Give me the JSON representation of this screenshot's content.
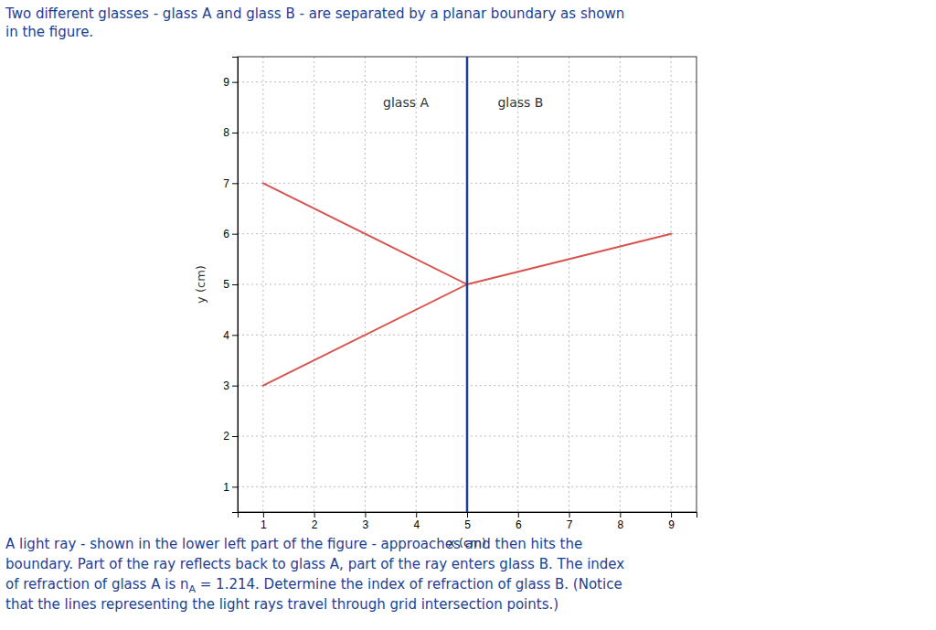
{
  "chart_data": {
    "type": "line",
    "title": [
      "Two different glasses - glass A and glass B - are separated by a planar boundary as shown",
      "in the figure."
    ],
    "caption": [
      [
        "A light ray - shown in the lower left part of the figure - approaches and then hits the"
      ],
      [
        "boundary. Part of the ray reflects back to glass A, part of the ray enters glass B. The index"
      ],
      [
        "of refraction of glass A is n",
        "A",
        " = 1.214. Determine the index of refraction of glass B. (Notice"
      ],
      [
        "that the lines representing the light rays travel through grid intersection points.)"
      ]
    ],
    "text_color": "#1c3f94",
    "x_label": "x (cm)",
    "y_label": "y (cm)",
    "xlim": [
      0.5,
      9.5
    ],
    "ylim": [
      0.5,
      9.5
    ],
    "xticks": [
      1,
      2,
      3,
      4,
      5,
      6,
      7,
      8,
      9
    ],
    "yticks": [
      1,
      2,
      3,
      4,
      5,
      6,
      7,
      8,
      9
    ],
    "grid": true,
    "series": [
      {
        "x": [
          1,
          5
        ],
        "values": [
          3,
          5
        ],
        "color": "#d9534f"
      },
      {
        "x": [
          5,
          1
        ],
        "values": [
          5,
          7
        ],
        "color": "#d9534f"
      },
      {
        "x": [
          5,
          9
        ],
        "values": [
          5,
          6
        ],
        "color": "#d9534f"
      }
    ],
    "vlines": [
      {
        "x": 5,
        "color": "#1c3f94"
      }
    ],
    "annotations": [
      {
        "text": "glass A",
        "x": 3.8,
        "y": 8.7
      },
      {
        "text": "glass B",
        "x": 5.6,
        "y": 8.7
      }
    ]
  }
}
